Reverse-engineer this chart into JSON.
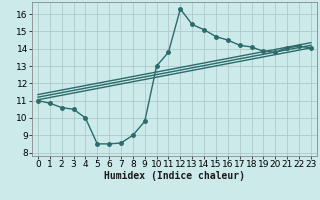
{
  "xlabel": "Humidex (Indice chaleur)",
  "bg_color": "#cceaea",
  "grid_color": "#b0c8c8",
  "line_color": "#2a6b6b",
  "xlim": [
    -0.5,
    23.5
  ],
  "ylim": [
    7.8,
    16.7
  ],
  "yticks": [
    8,
    9,
    10,
    11,
    12,
    13,
    14,
    15,
    16
  ],
  "xticks": [
    0,
    1,
    2,
    3,
    4,
    5,
    6,
    7,
    8,
    9,
    10,
    11,
    12,
    13,
    14,
    15,
    16,
    17,
    18,
    19,
    20,
    21,
    22,
    23
  ],
  "line1_x": [
    0,
    1,
    2,
    3,
    4,
    5,
    6,
    7,
    8,
    9,
    10,
    11,
    12,
    13,
    14,
    15,
    16,
    17,
    18,
    19,
    20,
    21,
    22,
    23
  ],
  "line1_y": [
    11.0,
    10.85,
    10.6,
    10.5,
    10.0,
    8.5,
    8.5,
    8.55,
    9.0,
    9.8,
    13.0,
    13.8,
    16.3,
    15.4,
    15.1,
    14.7,
    14.5,
    14.2,
    14.1,
    13.85,
    13.8,
    14.05,
    14.15,
    14.05
  ],
  "line2_x": [
    0,
    23
  ],
  "line2_y": [
    11.05,
    14.05
  ],
  "line3_x": [
    0,
    23
  ],
  "line3_y": [
    11.2,
    14.2
  ],
  "line4_x": [
    0,
    23
  ],
  "line4_y": [
    11.35,
    14.35
  ],
  "marker_size": 2.5,
  "line_width": 1.0,
  "font_size_label": 7,
  "font_size_tick": 6.5
}
